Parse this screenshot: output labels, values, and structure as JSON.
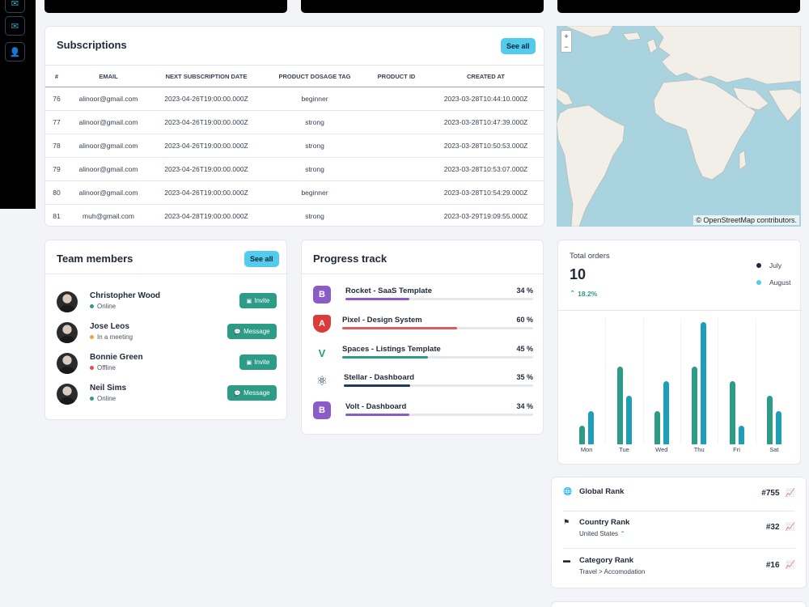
{
  "subscriptions": {
    "title": "Subscriptions",
    "see_all": "See all",
    "columns": [
      "#",
      "EMAIL",
      "NEXT SUBSCRIPTION DATE",
      "PRODUCT DOSAGE TAG",
      "PRODUCT ID",
      "CREATED AT"
    ],
    "rows": [
      [
        "76",
        "alinoor@gmail.com",
        "2023-04-26T19:00:00.000Z",
        "beginner",
        "",
        "2023-03-28T10:44:10.000Z"
      ],
      [
        "77",
        "alinoor@gmail.com",
        "2023-04-26T19:00:00.000Z",
        "strong",
        "",
        "2023-03-28T10:47:39.000Z"
      ],
      [
        "78",
        "alinoor@gmail.com",
        "2023-04-26T19:00:00.000Z",
        "strong",
        "",
        "2023-03-28T10:50:53.000Z"
      ],
      [
        "79",
        "alinoor@gmail.com",
        "2023-04-26T19:00:00.000Z",
        "strong",
        "",
        "2023-03-28T10:53:07.000Z"
      ],
      [
        "80",
        "alinoor@gmail.com",
        "2023-04-26T19:00:00.000Z",
        "beginner",
        "",
        "2023-03-28T10:54:29.000Z"
      ],
      [
        "81",
        "muh@gmail.com",
        "2023-04-28T19:00:00.000Z",
        "strong",
        "",
        "2023-03-29T19:09:55.000Z"
      ]
    ]
  },
  "team": {
    "title": "Team members",
    "see_all": "See all",
    "members": [
      {
        "name": "Christopher Wood",
        "status": "Online",
        "status_color": "#2c9c86",
        "action": "Invite"
      },
      {
        "name": "Jose Leos",
        "status": "In a meeting",
        "status_color": "#f5a524",
        "action": "Message"
      },
      {
        "name": "Bonnie Green",
        "status": "Offline",
        "status_color": "#e04f4f",
        "action": "Invite"
      },
      {
        "name": "Neil Sims",
        "status": "Online",
        "status_color": "#2c9c86",
        "action": "Message"
      }
    ]
  },
  "progress": {
    "title": "Progress track",
    "items": [
      {
        "name": "Rocket - SaaS Template",
        "percent": "34 %",
        "value": 34,
        "color": "#8b5cc7",
        "icon": "bootstrap-icon",
        "icon_char": "B",
        "icon_bg": "#8b5cc7"
      },
      {
        "name": "Pixel - Design System",
        "percent": "60 %",
        "value": 60,
        "color": "#dc5b5b",
        "icon": "angular-icon",
        "icon_char": "A",
        "icon_bg": "#dd3a3a"
      },
      {
        "name": "Spaces - Listings Template",
        "percent": "45 %",
        "value": 45,
        "color": "#2c9c86",
        "icon": "vue-icon",
        "icon_char": "V",
        "icon_bg": "#ffffff"
      },
      {
        "name": "Stellar - Dashboard",
        "percent": "35 %",
        "value": 35,
        "color": "#1e3a5f",
        "icon": "react-icon",
        "icon_char": "⚛",
        "icon_bg": "#ffffff"
      },
      {
        "name": "Volt - Dashboard",
        "percent": "34 %",
        "value": 34,
        "color": "#8b5cc7",
        "icon": "bootstrap-icon",
        "icon_char": "B",
        "icon_bg": "#8b5cc7"
      }
    ]
  },
  "map": {
    "zoom_in": "+",
    "zoom_out": "−",
    "attribution": "© OpenStreetMap contributors."
  },
  "orders": {
    "title": "Total orders",
    "value": "10",
    "change": "18.2%",
    "legend": [
      {
        "name": "July",
        "color": "#1e2a3b"
      },
      {
        "name": "August",
        "color": "#52cbed"
      }
    ],
    "chart_data": {
      "type": "bar",
      "categories": [
        "Mon",
        "Tue",
        "Wed",
        "Thu",
        "Fri",
        "Sat"
      ],
      "series": [
        {
          "name": "July",
          "values": [
            2.5,
            10.5,
            4.5,
            10.5,
            8.5,
            6.5
          ],
          "color": "#2c9c86"
        },
        {
          "name": "August",
          "values": [
            4.5,
            6.5,
            8.5,
            16.5,
            2.5,
            4.5
          ],
          "color": "#1e9fb7"
        }
      ],
      "ylim": [
        0,
        17
      ]
    }
  },
  "ranks": {
    "items": [
      {
        "title": "Global Rank",
        "sub": "",
        "value": "#755"
      },
      {
        "title": "Country Rank",
        "sub": "United States",
        "value": "#32"
      },
      {
        "title": "Category Rank",
        "sub": "Travel > Accomodation",
        "value": "#16"
      }
    ]
  }
}
